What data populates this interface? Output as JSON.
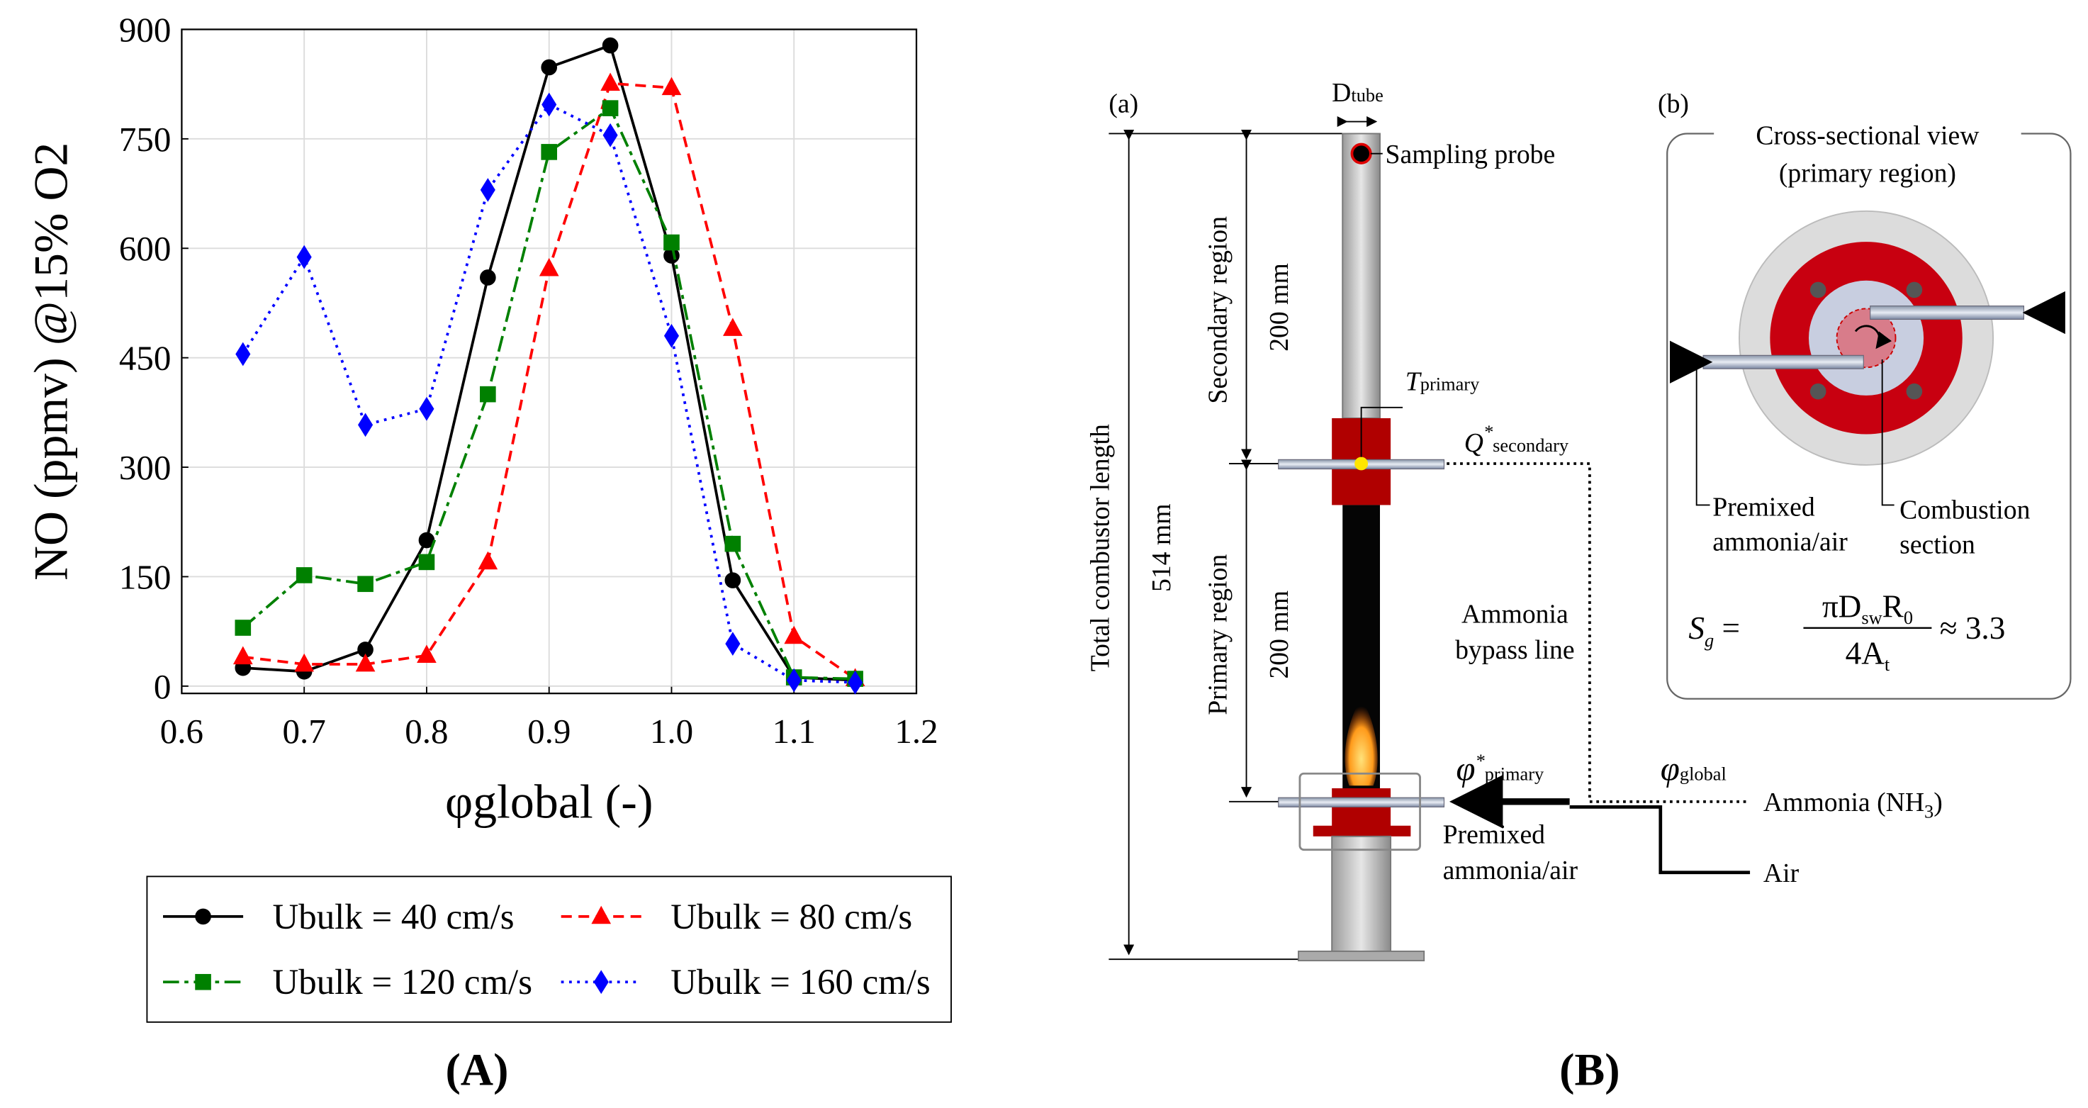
{
  "chart_data": {
    "type": "line",
    "xlabel": "φglobal (-)",
    "ylabel": "NO (ppmv) @15% O2",
    "x": [
      0.65,
      0.7,
      0.75,
      0.8,
      0.85,
      0.9,
      0.95,
      1.0,
      1.05,
      1.1,
      1.15
    ],
    "series": [
      {
        "name": "Ubulk = 40 cm/s",
        "color": "#000000",
        "marker": "circle",
        "dash": "solid",
        "values": [
          25,
          20,
          50,
          200,
          560,
          848,
          878,
          590,
          145,
          12,
          8
        ]
      },
      {
        "name": "Ubulk = 80 cm/s",
        "color": "#ff0000",
        "marker": "triangle",
        "dash": "dashed",
        "values": [
          40,
          30,
          30,
          42,
          170,
          572,
          826,
          820,
          490,
          68,
          10
        ]
      },
      {
        "name": "Ubulk = 120 cm/s",
        "color": "#008000",
        "marker": "square",
        "dash": "dashdot",
        "values": [
          80,
          152,
          140,
          170,
          400,
          732,
          792,
          608,
          195,
          12,
          10
        ]
      },
      {
        "name": "Ubulk = 160 cm/s",
        "color": "#0000ff",
        "marker": "diamond",
        "dash": "dotted",
        "values": [
          455,
          588,
          358,
          380,
          680,
          797,
          755,
          480,
          58,
          8,
          5
        ]
      }
    ],
    "xlim": [
      0.6,
      1.2
    ],
    "xticks": [
      0.6,
      0.7,
      0.8,
      0.9,
      {
        "value": 1,
        "label": "1.0"
      },
      1.1,
      1.2
    ],
    "ylim": [
      -10,
      900
    ],
    "yticks": [
      0,
      150,
      300,
      450,
      600,
      750,
      900
    ],
    "grid": true,
    "legend": "below"
  },
  "panel_labels": [
    "(A)",
    "(B)"
  ],
  "diagram": {
    "label": "(a)",
    "d_tube": [
      "D",
      "tube"
    ],
    "sampling_probe": "Sampling probe",
    "secondary_region": "Secondary region",
    "secondary_length": "200 mm",
    "t_primary": [
      "T",
      "primary"
    ],
    "q_secondary": [
      "Q",
      "*",
      "secondary"
    ],
    "total_length_label": "Total combustor length",
    "total_length": "514 mm",
    "primary_region": "Primary region",
    "primary_length": "200 mm",
    "bypass": [
      "Ammonia",
      "bypass line"
    ],
    "phi_primary": [
      "φ",
      "*",
      "primary"
    ],
    "phi_global": [
      "φ",
      "global"
    ],
    "ammonia": [
      "Ammonia (NH",
      "3",
      ")"
    ],
    "premixed": [
      "Premixed",
      "ammonia/air"
    ],
    "air": "Air"
  },
  "cross_section": {
    "label": "(b)",
    "title": [
      "Cross-sectional view",
      "(primary region)"
    ],
    "premixed": [
      "Premixed",
      "ammonia/air"
    ],
    "combustion": [
      "Combustion",
      "section"
    ],
    "equation": {
      "lhs": [
        "S",
        "g",
        " ="
      ],
      "numerator": [
        "πD",
        "sw",
        "R",
        "0"
      ],
      "denominator": [
        "4A",
        "t"
      ],
      "rhs": "≈ 3.3"
    }
  }
}
